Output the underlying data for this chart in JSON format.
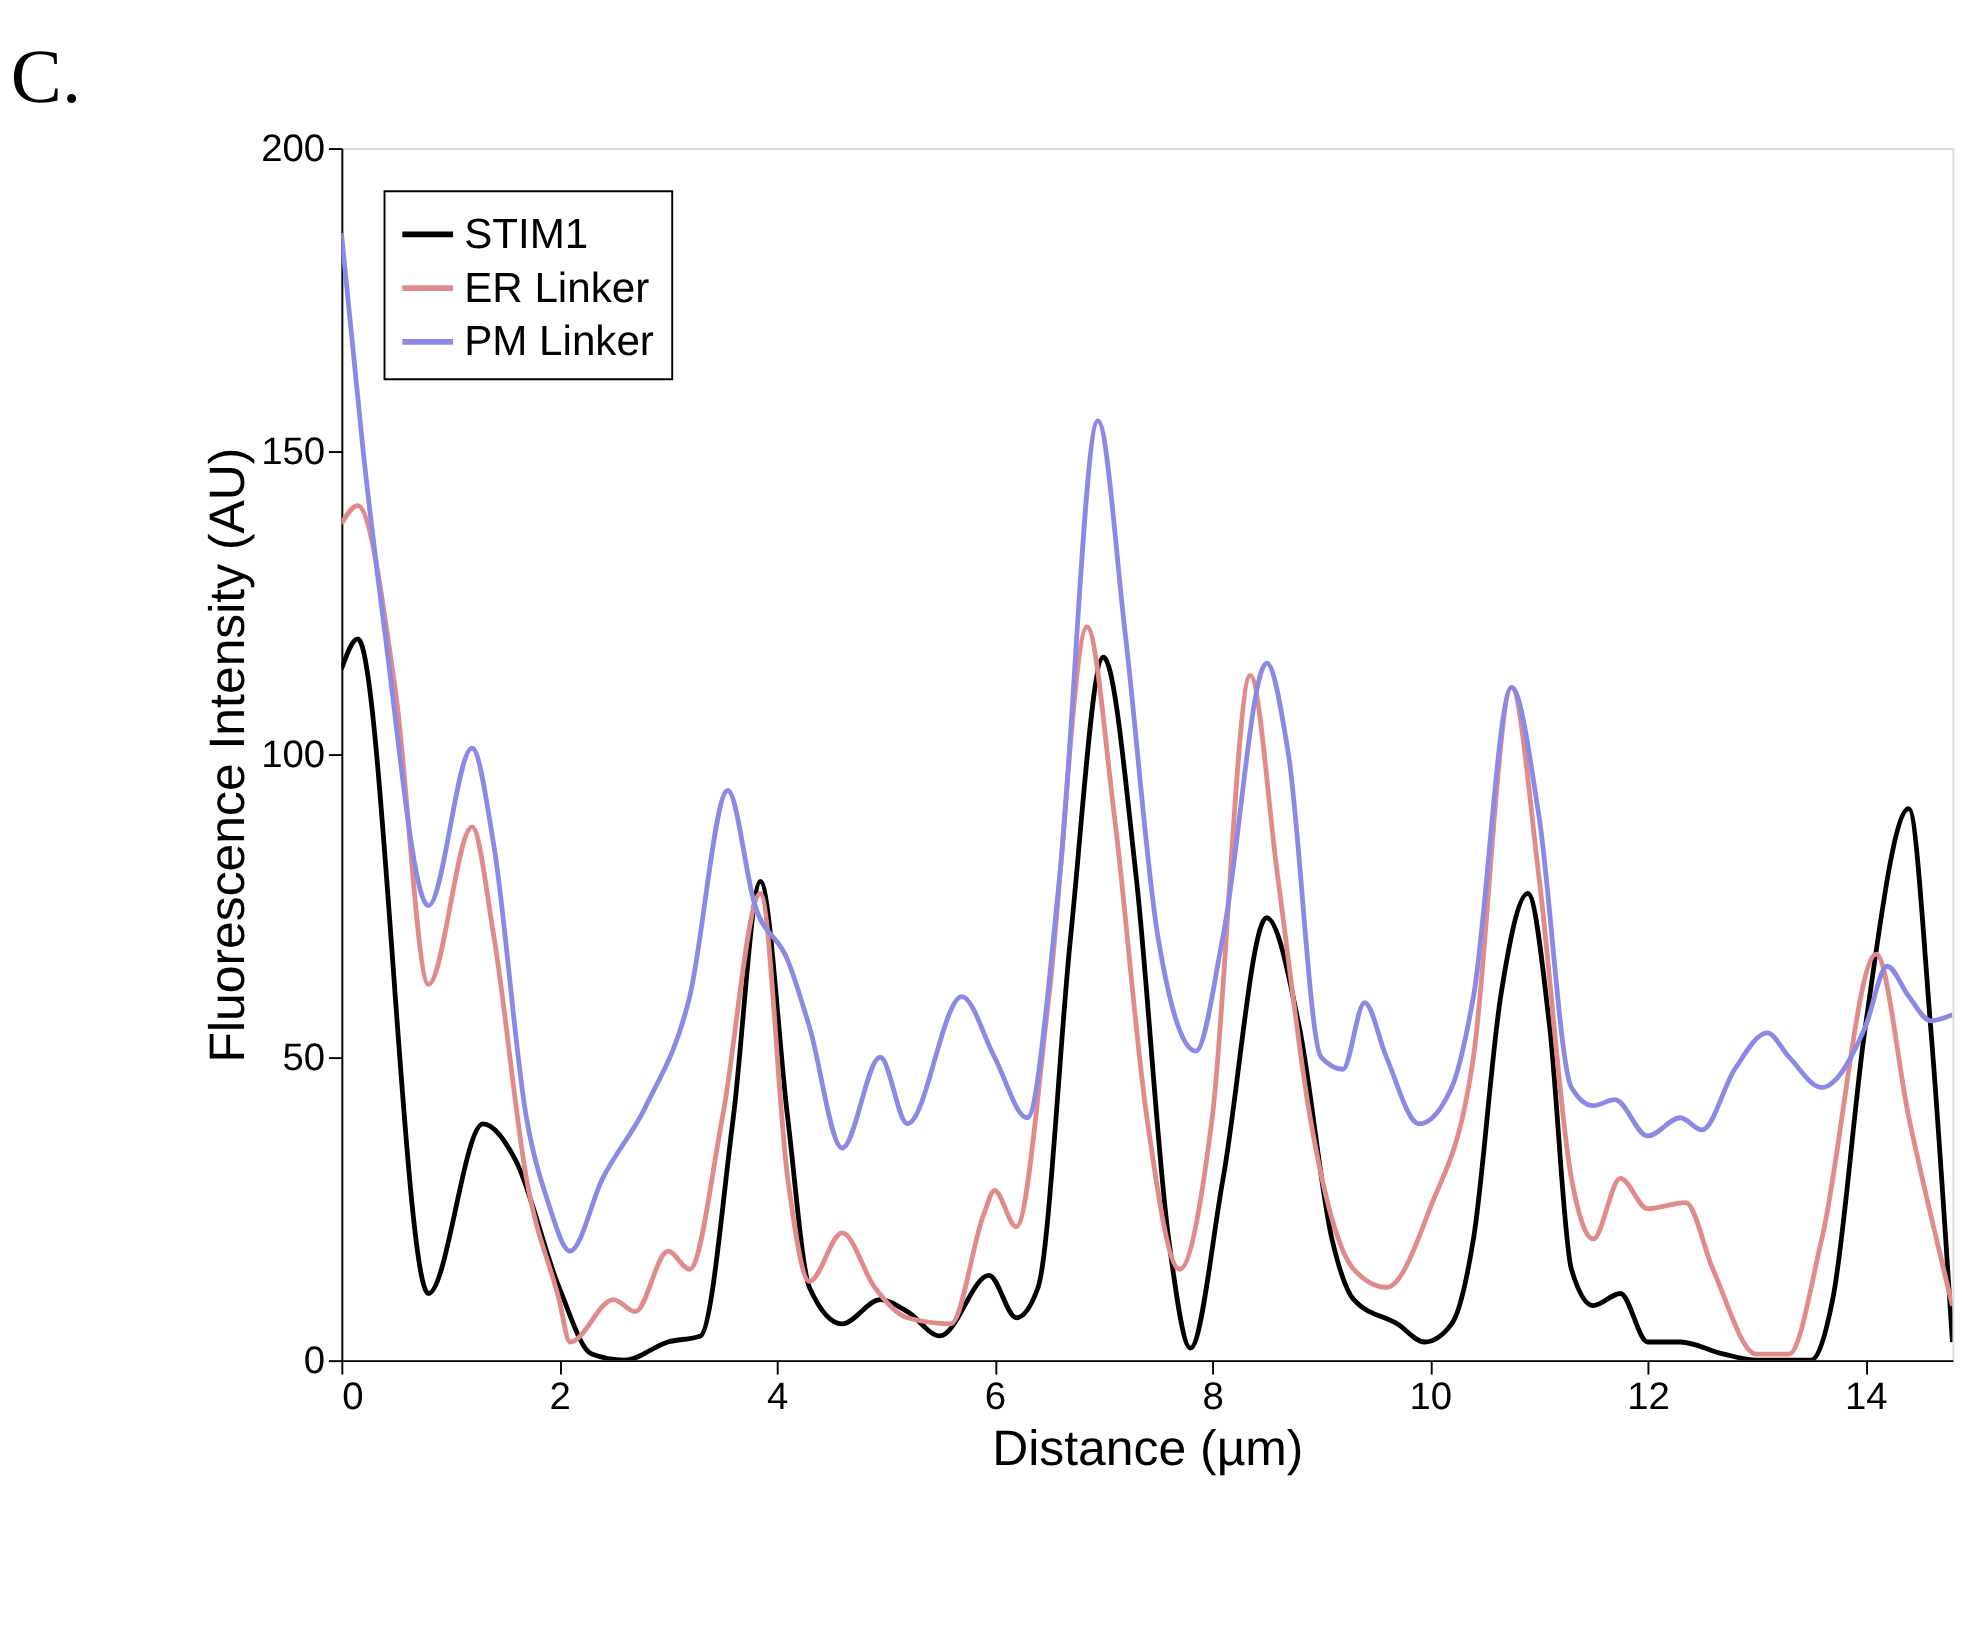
{
  "chart_data": {
    "type": "line",
    "annotations": [
      "C."
    ],
    "xlabel": "Distance (µm)",
    "ylabel": "Fluorescence Intensity (AU)",
    "xlim": [
      0,
      14.8
    ],
    "ylim": [
      0,
      200
    ],
    "xticks": [
      0,
      2,
      4,
      6,
      8,
      10,
      12,
      14
    ],
    "yticks": [
      0,
      50,
      100,
      150,
      200
    ],
    "grid": false,
    "legend": "top left",
    "marker": "none",
    "line_style": "solid",
    "series": [
      {
        "name": "STIM1",
        "color": "#000000",
        "x": [
          0,
          0.15,
          0.8,
          1.3,
          1.6,
          2.0,
          2.3,
          2.6,
          3.0,
          3.3,
          3.6,
          3.85,
          4.1,
          4.3,
          4.6,
          4.95,
          5.2,
          5.5,
          5.95,
          6.2,
          6.4,
          6.7,
          7.0,
          7.3,
          7.6,
          7.8,
          8.1,
          8.5,
          8.8,
          9.1,
          9.3,
          9.7,
          9.95,
          10.2,
          10.4,
          10.65,
          10.9,
          11.1,
          11.3,
          11.5,
          11.75,
          12.0,
          12.3,
          12.7,
          13.0,
          13.5,
          13.7,
          14.0,
          14.4,
          14.6,
          14.8
        ],
        "values": [
          114,
          119,
          11,
          39,
          33,
          12,
          1,
          0,
          3,
          4,
          40,
          79,
          40,
          12,
          6,
          10,
          8,
          4,
          14,
          7,
          12,
          70,
          116,
          80,
          20,
          2,
          30,
          73,
          55,
          20,
          10,
          6,
          3,
          6,
          20,
          60,
          77,
          55,
          15,
          9,
          11,
          3,
          3,
          1,
          0,
          0,
          10,
          55,
          91,
          55,
          3
        ]
      },
      {
        "name": "ER Linker",
        "color": "#e08a8a",
        "x": [
          0,
          0.15,
          0.5,
          0.8,
          1.2,
          1.4,
          1.7,
          2.0,
          2.1,
          2.5,
          2.7,
          3.0,
          3.2,
          3.5,
          3.85,
          4.1,
          4.3,
          4.6,
          4.9,
          5.2,
          5.6,
          5.9,
          6.0,
          6.2,
          6.5,
          6.85,
          7.1,
          7.4,
          7.7,
          8.0,
          8.35,
          8.6,
          8.9,
          9.3,
          9.6,
          10.0,
          10.4,
          10.75,
          11.0,
          11.3,
          11.5,
          11.75,
          12.0,
          12.35,
          12.6,
          13.0,
          13.3,
          13.6,
          14.1,
          14.4,
          14.8
        ],
        "values": [
          138,
          141,
          110,
          62,
          88,
          70,
          30,
          10,
          3,
          10,
          8,
          18,
          15,
          40,
          77,
          30,
          13,
          21,
          12,
          7,
          6,
          24,
          28,
          22,
          60,
          121,
          90,
          40,
          15,
          40,
          113,
          80,
          40,
          15,
          12,
          25,
          50,
          111,
          80,
          30,
          20,
          30,
          25,
          26,
          15,
          1,
          1,
          20,
          67,
          40,
          9
        ]
      },
      {
        "name": "PM Linker",
        "color": "#8a8ae6",
        "x": [
          0,
          0.2,
          0.4,
          0.8,
          1.2,
          1.4,
          1.7,
          1.9,
          2.1,
          2.4,
          2.8,
          3.2,
          3.55,
          3.8,
          4.1,
          4.3,
          4.6,
          4.95,
          5.2,
          5.7,
          6.0,
          6.3,
          6.6,
          6.95,
          7.2,
          7.5,
          7.85,
          8.1,
          8.5,
          8.7,
          9.0,
          9.2,
          9.4,
          9.6,
          9.9,
          10.2,
          10.4,
          10.75,
          11.0,
          11.3,
          11.5,
          11.7,
          12.0,
          12.3,
          12.5,
          12.8,
          13.1,
          13.3,
          13.6,
          14.0,
          14.2,
          14.4,
          14.6,
          14.8
        ],
        "values": [
          186,
          150,
          120,
          75,
          101,
          85,
          40,
          26,
          18,
          30,
          42,
          60,
          94,
          75,
          66,
          55,
          35,
          50,
          39,
          60,
          50,
          40,
          80,
          155,
          120,
          70,
          51,
          70,
          115,
          100,
          50,
          48,
          59,
          50,
          39,
          45,
          60,
          111,
          90,
          45,
          42,
          43,
          37,
          40,
          38,
          48,
          54,
          50,
          45,
          55,
          65,
          60,
          56,
          57
        ]
      }
    ]
  }
}
